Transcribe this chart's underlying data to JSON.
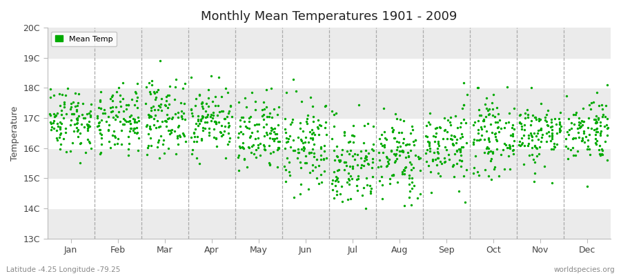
{
  "title": "Monthly Mean Temperatures 1901 - 2009",
  "ylabel": "Temperature",
  "xlabel_labels": [
    "Jan",
    "Feb",
    "Mar",
    "Apr",
    "May",
    "Jun",
    "Jul",
    "Aug",
    "Sep",
    "Oct",
    "Nov",
    "Dec"
  ],
  "ytick_labels": [
    "13C",
    "14C",
    "15C",
    "16C",
    "17C",
    "18C",
    "19C",
    "20C"
  ],
  "ytick_values": [
    13,
    14,
    15,
    16,
    17,
    18,
    19,
    20
  ],
  "ylim": [
    13,
    20
  ],
  "dot_color": "#00aa00",
  "bg_color": "#ffffff",
  "stripe_color_odd": "#ebebeb",
  "stripe_color_even": "#ffffff",
  "legend_label": "Mean Temp",
  "bottom_left_text": "Latitude -4.25 Longitude -79.25",
  "bottom_right_text": "worldspecies.org",
  "num_years": 109,
  "seed": 42,
  "monthly_means": [
    16.95,
    16.85,
    17.05,
    16.95,
    16.35,
    16.05,
    15.5,
    15.7,
    16.1,
    16.4,
    16.5,
    16.65
  ],
  "monthly_stds": [
    0.55,
    0.55,
    0.6,
    0.55,
    0.65,
    0.75,
    0.75,
    0.7,
    0.65,
    0.6,
    0.55,
    0.55
  ]
}
